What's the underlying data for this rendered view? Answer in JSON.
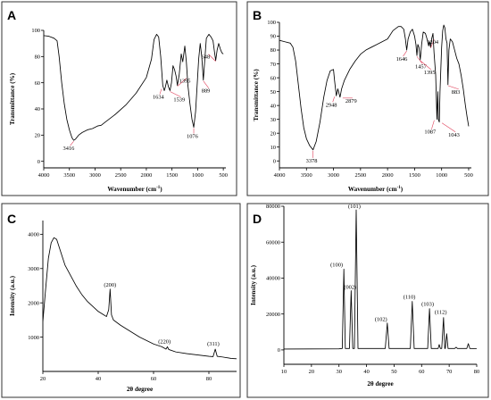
{
  "chart_data": [
    {
      "panel": "A",
      "type": "line",
      "xlabel": "Wavenumber (cm",
      "xlabel_sup": "-1",
      "xlabel_tail": ")",
      "ylabel": "Transmittance (%)",
      "xlim": [
        4000,
        450
      ],
      "ylim": [
        -5,
        100
      ],
      "x_reversed": true,
      "xticks": [
        4000,
        3500,
        3000,
        2500,
        2000,
        1500,
        1000,
        500
      ],
      "yticks": [
        0,
        20,
        40,
        60,
        80,
        100
      ],
      "series": [
        {
          "points": [
            [
              4000,
              96
            ],
            [
              3900,
              95.5
            ],
            [
              3800,
              94
            ],
            [
              3740,
              92
            ],
            [
              3700,
              80
            ],
            [
              3650,
              60
            ],
            [
              3600,
              44
            ],
            [
              3550,
              32
            ],
            [
              3500,
              24
            ],
            [
              3450,
              18
            ],
            [
              3416,
              16
            ],
            [
              3380,
              17
            ],
            [
              3320,
              20
            ],
            [
              3250,
              22
            ],
            [
              3150,
              24
            ],
            [
              3050,
              25
            ],
            [
              2950,
              27
            ],
            [
              2880,
              27.5
            ],
            [
              2800,
              30
            ],
            [
              2600,
              36
            ],
            [
              2400,
              43
            ],
            [
              2200,
              52
            ],
            [
              2000,
              64
            ],
            [
              1900,
              78
            ],
            [
              1850,
              93
            ],
            [
              1800,
              97
            ],
            [
              1760,
              95
            ],
            [
              1720,
              80
            ],
            [
              1680,
              58
            ],
            [
              1650,
              54
            ],
            [
              1634,
              56
            ],
            [
              1600,
              62
            ],
            [
              1570,
              57
            ],
            [
              1539,
              54
            ],
            [
              1510,
              60
            ],
            [
              1480,
              73
            ],
            [
              1450,
              70
            ],
            [
              1420,
              65
            ],
            [
              1395,
              58
            ],
            [
              1360,
              66
            ],
            [
              1320,
              82
            ],
            [
              1290,
              76
            ],
            [
              1250,
              88
            ],
            [
              1220,
              76
            ],
            [
              1190,
              58
            ],
            [
              1150,
              44
            ],
            [
              1110,
              32
            ],
            [
              1076,
              26
            ],
            [
              1040,
              38
            ],
            [
              1010,
              58
            ],
            [
              980,
              78
            ],
            [
              950,
              90
            ],
            [
              920,
              80
            ],
            [
              889,
              62
            ],
            [
              860,
              78
            ],
            [
              830,
              94
            ],
            [
              780,
              97
            ],
            [
              740,
              95
            ],
            [
              700,
              92
            ],
            [
              670,
              83
            ],
            [
              648,
              77
            ],
            [
              620,
              85
            ],
            [
              590,
              90
            ],
            [
              560,
              86
            ],
            [
              530,
              83
            ],
            [
              500,
              82
            ]
          ]
        }
      ],
      "annotations": [
        {
          "x": 3416,
          "y": 16,
          "label": "3416"
        },
        {
          "x": 1634,
          "y": 56,
          "label": "1634"
        },
        {
          "x": 1539,
          "y": 54,
          "label": "1539"
        },
        {
          "x": 1395,
          "y": 58,
          "label": "1395"
        },
        {
          "x": 1076,
          "y": 26,
          "label": "1076"
        },
        {
          "x": 889,
          "y": 62,
          "label": "889"
        },
        {
          "x": 648,
          "y": 77,
          "label": "648"
        }
      ]
    },
    {
      "panel": "B",
      "type": "line",
      "xlabel": "Wavenumber (cm",
      "xlabel_sup": "-1",
      "xlabel_tail": ")",
      "ylabel": "Transmittance (%)",
      "xlim": [
        4000,
        450
      ],
      "ylim": [
        -5,
        100
      ],
      "x_reversed": true,
      "xticks": [
        4000,
        3500,
        3000,
        2500,
        2000,
        1500,
        1000,
        500
      ],
      "yticks": [
        0,
        10,
        20,
        30,
        40,
        50,
        60,
        70,
        80,
        90,
        100
      ],
      "series": [
        {
          "points": [
            [
              4000,
              87
            ],
            [
              3900,
              86
            ],
            [
              3800,
              85
            ],
            [
              3750,
              82
            ],
            [
              3700,
              72
            ],
            [
              3650,
              55
            ],
            [
              3600,
              38
            ],
            [
              3550,
              24
            ],
            [
              3500,
              16
            ],
            [
              3440,
              11
            ],
            [
              3378,
              8
            ],
            [
              3320,
              14
            ],
            [
              3250,
              28
            ],
            [
              3180,
              46
            ],
            [
              3120,
              58
            ],
            [
              3060,
              65
            ],
            [
              3000,
              66
            ],
            [
              2980,
              58
            ],
            [
              2948,
              47
            ],
            [
              2920,
              52
            ],
            [
              2900,
              49
            ],
            [
              2879,
              46
            ],
            [
              2850,
              52
            ],
            [
              2800,
              58
            ],
            [
              2700,
              66
            ],
            [
              2600,
              72
            ],
            [
              2500,
              77
            ],
            [
              2400,
              80
            ],
            [
              2300,
              82
            ],
            [
              2200,
              84
            ],
            [
              2100,
              86
            ],
            [
              2000,
              88
            ],
            [
              1900,
              94
            ],
            [
              1800,
              97
            ],
            [
              1750,
              97
            ],
            [
              1700,
              95
            ],
            [
              1670,
              88
            ],
            [
              1646,
              80
            ],
            [
              1620,
              88
            ],
            [
              1580,
              93
            ],
            [
              1540,
              95
            ],
            [
              1500,
              90
            ],
            [
              1475,
              84
            ],
            [
              1457,
              76
            ],
            [
              1440,
              84
            ],
            [
              1420,
              82
            ],
            [
              1395,
              73
            ],
            [
              1370,
              84
            ],
            [
              1340,
              93
            ],
            [
              1300,
              92
            ],
            [
              1270,
              88
            ],
            [
              1240,
              83
            ],
            [
              1220,
              86
            ],
            [
              1204,
              82
            ],
            [
              1185,
              88
            ],
            [
              1160,
              92
            ],
            [
              1140,
              78
            ],
            [
              1110,
              62
            ],
            [
              1087,
              30
            ],
            [
              1070,
              50
            ],
            [
              1060,
              30
            ],
            [
              1043,
              28
            ],
            [
              1030,
              50
            ],
            [
              1000,
              82
            ],
            [
              980,
              94
            ],
            [
              960,
              98
            ],
            [
              940,
              96
            ],
            [
              920,
              88
            ],
            [
              900,
              85
            ],
            [
              883,
              55
            ],
            [
              865,
              80
            ],
            [
              840,
              88
            ],
            [
              800,
              86
            ],
            [
              760,
              80
            ],
            [
              720,
              74
            ],
            [
              680,
              70
            ],
            [
              640,
              62
            ],
            [
              600,
              52
            ],
            [
              560,
              40
            ],
            [
              530,
              32
            ],
            [
              500,
              25
            ]
          ]
        }
      ],
      "annotations": [
        {
          "x": 3378,
          "y": 8,
          "label": "3378"
        },
        {
          "x": 2948,
          "y": 47,
          "label": "2948"
        },
        {
          "x": 2879,
          "y": 46,
          "label": "2879"
        },
        {
          "x": 1646,
          "y": 80,
          "label": "1646"
        },
        {
          "x": 1457,
          "y": 76,
          "label": "1457"
        },
        {
          "x": 1395,
          "y": 73,
          "label": "1395"
        },
        {
          "x": 1204,
          "y": 82,
          "label": "1204"
        },
        {
          "x": 883,
          "y": 55,
          "label": "883"
        },
        {
          "x": 1087,
          "y": 30,
          "label": "1087"
        },
        {
          "x": 1043,
          "y": 28,
          "label": "1043"
        }
      ]
    },
    {
      "panel": "C",
      "type": "line",
      "xlabel": "2θ degree",
      "ylabel": "Intensity (a.u.)",
      "xlim": [
        20,
        90
      ],
      "ylim": [
        0,
        4400
      ],
      "xticks": [
        20,
        40,
        60,
        80
      ],
      "yticks": [
        1000,
        2000,
        3000,
        4000
      ],
      "series": [
        {
          "points": [
            [
              20,
              1450
            ],
            [
              21,
              2400
            ],
            [
              22,
              3300
            ],
            [
              23,
              3750
            ],
            [
              24,
              3900
            ],
            [
              25,
              3850
            ],
            [
              26,
              3600
            ],
            [
              27,
              3350
            ],
            [
              28,
              3100
            ],
            [
              30,
              2800
            ],
            [
              32,
              2500
            ],
            [
              34,
              2250
            ],
            [
              36,
              2050
            ],
            [
              38,
              1900
            ],
            [
              40,
              1750
            ],
            [
              42,
              1650
            ],
            [
              43,
              1600
            ],
            [
              43.8,
              1800
            ],
            [
              44.3,
              2400
            ],
            [
              44.8,
              1650
            ],
            [
              45.5,
              1500
            ],
            [
              48,
              1350
            ],
            [
              50,
              1250
            ],
            [
              55,
              1000
            ],
            [
              60,
              800
            ],
            [
              63,
              720
            ],
            [
              64.5,
              650
            ],
            [
              65,
              720
            ],
            [
              65.5,
              640
            ],
            [
              68,
              570
            ],
            [
              72,
              520
            ],
            [
              76,
              480
            ],
            [
              80,
              440
            ],
            [
              81.5,
              430
            ],
            [
              82.3,
              650
            ],
            [
              83,
              440
            ],
            [
              85,
              420
            ],
            [
              88,
              380
            ],
            [
              90,
              370
            ]
          ]
        }
      ],
      "annotations": [
        {
          "x": 44.3,
          "y": 2400,
          "label": "(200)"
        },
        {
          "x": 64.6,
          "y": 720,
          "label": "(220)"
        },
        {
          "x": 82.3,
          "y": 650,
          "label": "(311)"
        }
      ]
    },
    {
      "panel": "D",
      "type": "line",
      "xlabel": "2θ degree",
      "ylabel": "Intensity (a.u.)",
      "xlim": [
        10,
        80
      ],
      "ylim": [
        -8000,
        80000
      ],
      "xticks": [
        10,
        20,
        30,
        40,
        50,
        60,
        70,
        80
      ],
      "yticks": [
        0,
        20000,
        40000,
        60000,
        80000
      ],
      "series": [
        {
          "points": [
            [
              10,
              500
            ],
            [
              30,
              600
            ],
            [
              31.2,
              800
            ],
            [
              31.77,
              45000
            ],
            [
              32.3,
              800
            ],
            [
              33.8,
              800
            ],
            [
              34.42,
              33000
            ],
            [
              35,
              800
            ],
            [
              35.6,
              800
            ],
            [
              36.25,
              78000
            ],
            [
              36.9,
              800
            ],
            [
              46.8,
              800
            ],
            [
              47.54,
              15000
            ],
            [
              48.2,
              800
            ],
            [
              55.9,
              800
            ],
            [
              56.6,
              27000
            ],
            [
              57.3,
              800
            ],
            [
              62.2,
              800
            ],
            [
              62.86,
              23000
            ],
            [
              63.5,
              800
            ],
            [
              66,
              800
            ],
            [
              66.38,
              3000
            ],
            [
              66.8,
              800
            ],
            [
              67.3,
              800
            ],
            [
              67.96,
              18000
            ],
            [
              68.4,
              800
            ],
            [
              68.6,
              800
            ],
            [
              69.1,
              9000
            ],
            [
              69.6,
              800
            ],
            [
              72,
              800
            ],
            [
              72.56,
              1500
            ],
            [
              73,
              800
            ],
            [
              76.4,
              800
            ],
            [
              76.95,
              3500
            ],
            [
              77.5,
              800
            ],
            [
              80,
              700
            ]
          ]
        }
      ],
      "annotations": [
        {
          "x": 31.77,
          "y": 45000,
          "label": "(100)"
        },
        {
          "x": 34.42,
          "y": 33000,
          "label": "(002)"
        },
        {
          "x": 36.25,
          "y": 78000,
          "label": "(101)"
        },
        {
          "x": 47.54,
          "y": 15000,
          "label": "(102)"
        },
        {
          "x": 56.6,
          "y": 27000,
          "label": "(110)"
        },
        {
          "x": 62.86,
          "y": 23000,
          "label": "(103)"
        },
        {
          "x": 67.96,
          "y": 18000,
          "label": "(112)"
        }
      ]
    }
  ]
}
